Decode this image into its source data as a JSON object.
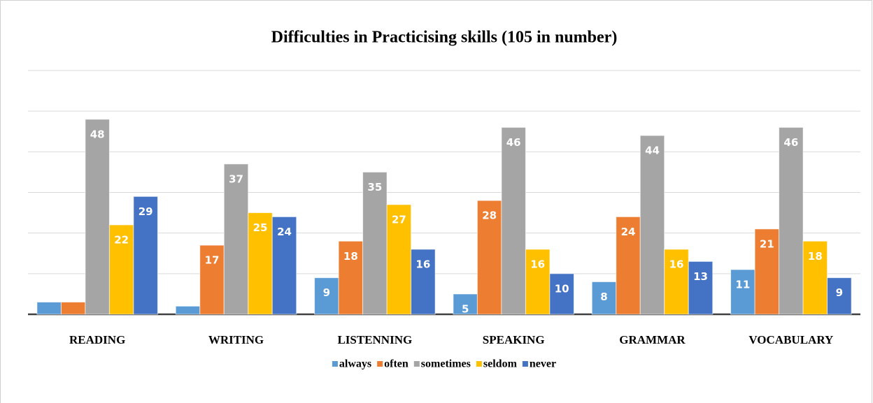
{
  "chart_data": {
    "type": "bar",
    "title": "Difficulties in Practicising skills (105 in number)",
    "categories": [
      "READING",
      "WRITING",
      "LISTENNING",
      "SPEAKING",
      "GRAMMAR",
      "VOCABULARY"
    ],
    "series": [
      {
        "name": "always",
        "color": "#5b9bd5",
        "values": [
          3,
          2,
          9,
          5,
          8,
          11
        ]
      },
      {
        "name": "often",
        "color": "#ed7d31",
        "values": [
          3,
          17,
          18,
          28,
          24,
          21
        ]
      },
      {
        "name": "sometimes",
        "color": "#a5a5a5",
        "values": [
          48,
          37,
          35,
          46,
          44,
          46
        ]
      },
      {
        "name": "seldom",
        "color": "#ffc000",
        "values": [
          22,
          25,
          27,
          16,
          16,
          18
        ]
      },
      {
        "name": "never",
        "color": "#4472c4",
        "values": [
          29,
          24,
          16,
          10,
          13,
          9
        ]
      }
    ],
    "ylim": [
      0,
      60
    ],
    "yticks": [
      0,
      10,
      20,
      30,
      40,
      50,
      60
    ],
    "grid": true,
    "legend": "bottom"
  }
}
